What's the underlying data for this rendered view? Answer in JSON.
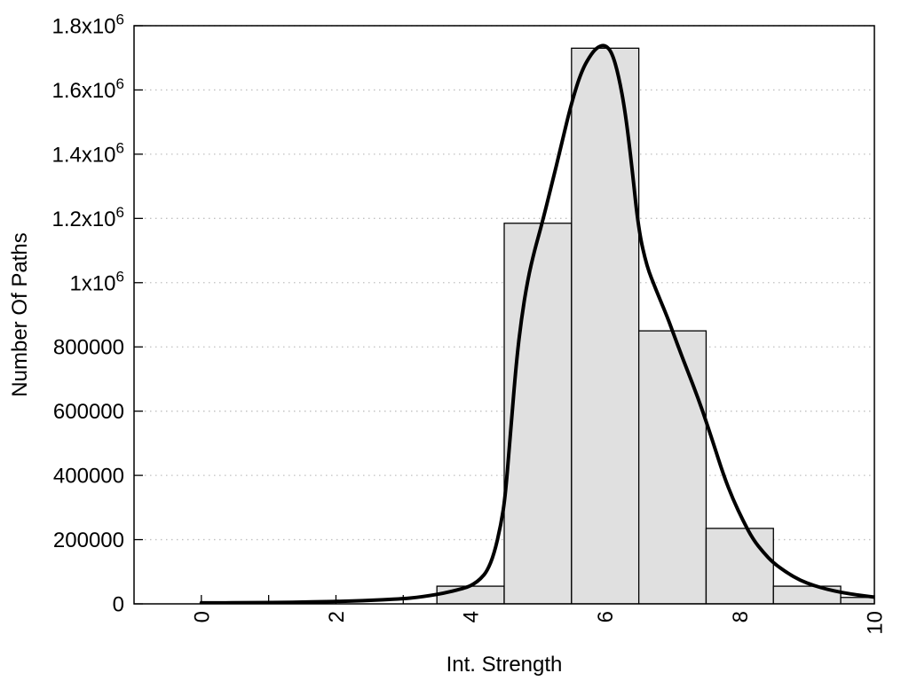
{
  "figure": {
    "background_color": "#ffffff",
    "text_color": "#000000"
  },
  "chart_data": {
    "type": "bar",
    "title": "",
    "xlabel": "Int. Strength",
    "ylabel": "Number Of Paths",
    "xlim": [
      -1,
      10
    ],
    "ylim": [
      0,
      1800000
    ],
    "x_tick_positions": [
      0,
      1,
      2,
      3,
      4,
      5,
      6,
      7,
      8,
      9,
      10
    ],
    "x_tick_labels": [
      {
        "value": 0,
        "label": "0"
      },
      {
        "value": 2,
        "label": "2"
      },
      {
        "value": 4,
        "label": "4"
      },
      {
        "value": 6,
        "label": "6"
      },
      {
        "value": 8,
        "label": "8"
      },
      {
        "value": 10,
        "label": "10"
      }
    ],
    "x_tick_label_rotation_deg": -90,
    "y_ticks": [
      {
        "value": 0,
        "label": "0"
      },
      {
        "value": 200000,
        "label": "200000"
      },
      {
        "value": 400000,
        "label": "400000"
      },
      {
        "value": 600000,
        "label": "600000"
      },
      {
        "value": 800000,
        "label": "800000"
      },
      {
        "value": 1000000,
        "label": "1x10^6"
      },
      {
        "value": 1200000,
        "label": "1.2x10^6"
      },
      {
        "value": 1400000,
        "label": "1.4x10^6"
      },
      {
        "value": 1600000,
        "label": "1.6x10^6"
      },
      {
        "value": 1800000,
        "label": "1.8x10^6"
      }
    ],
    "grid": {
      "axis": "y",
      "style": "dotted",
      "color": "#c0c0c0"
    },
    "legend_visible": false,
    "bars": {
      "bin_width": 1,
      "centers": [
        4,
        5,
        6,
        7,
        8,
        9,
        10
      ],
      "heights": [
        55000,
        1185000,
        1730000,
        850000,
        235000,
        55000,
        20000
      ],
      "fill_color": "#e0e0e0",
      "border_color": "#000000"
    },
    "curve": {
      "description": "smooth fit curve over histogram",
      "color": "#000000",
      "line_width": 4,
      "points": [
        [
          0,
          3000
        ],
        [
          0.3,
          3000
        ],
        [
          0.6,
          3500
        ],
        [
          0.9,
          4000
        ],
        [
          1.2,
          4500
        ],
        [
          1.5,
          5500
        ],
        [
          1.8,
          6500
        ],
        [
          2.1,
          8000
        ],
        [
          2.4,
          10000
        ],
        [
          2.7,
          12500
        ],
        [
          3.0,
          16000
        ],
        [
          3.2,
          20000
        ],
        [
          3.4,
          26000
        ],
        [
          3.6,
          33000
        ],
        [
          3.8,
          43000
        ],
        [
          3.95,
          52000
        ],
        [
          4.05,
          62000
        ],
        [
          4.15,
          78000
        ],
        [
          4.25,
          103000
        ],
        [
          4.35,
          155000
        ],
        [
          4.45,
          245000
        ],
        [
          4.52,
          340000
        ],
        [
          4.6,
          550000
        ],
        [
          4.68,
          750000
        ],
        [
          4.75,
          880000
        ],
        [
          4.85,
          1010000
        ],
        [
          4.95,
          1100000
        ],
        [
          5.05,
          1175000
        ],
        [
          5.2,
          1300000
        ],
        [
          5.35,
          1430000
        ],
        [
          5.5,
          1560000
        ],
        [
          5.65,
          1660000
        ],
        [
          5.8,
          1715000
        ],
        [
          5.9,
          1735000
        ],
        [
          6.0,
          1740000
        ],
        [
          6.1,
          1718000
        ],
        [
          6.2,
          1645000
        ],
        [
          6.3,
          1530000
        ],
        [
          6.4,
          1355000
        ],
        [
          6.5,
          1160000
        ],
        [
          6.62,
          1050000
        ],
        [
          6.75,
          980000
        ],
        [
          6.9,
          905000
        ],
        [
          7.0,
          850000
        ],
        [
          7.15,
          765000
        ],
        [
          7.3,
          685000
        ],
        [
          7.45,
          600000
        ],
        [
          7.6,
          505000
        ],
        [
          7.76,
          400000
        ],
        [
          7.9,
          325000
        ],
        [
          8.05,
          258000
        ],
        [
          8.2,
          200000
        ],
        [
          8.35,
          160000
        ],
        [
          8.5,
          127000
        ],
        [
          8.7,
          97000
        ],
        [
          8.9,
          73000
        ],
        [
          9.1,
          57000
        ],
        [
          9.3,
          45000
        ],
        [
          9.5,
          36000
        ],
        [
          9.7,
          29000
        ],
        [
          9.85,
          25000
        ],
        [
          10,
          21000
        ]
      ]
    }
  }
}
